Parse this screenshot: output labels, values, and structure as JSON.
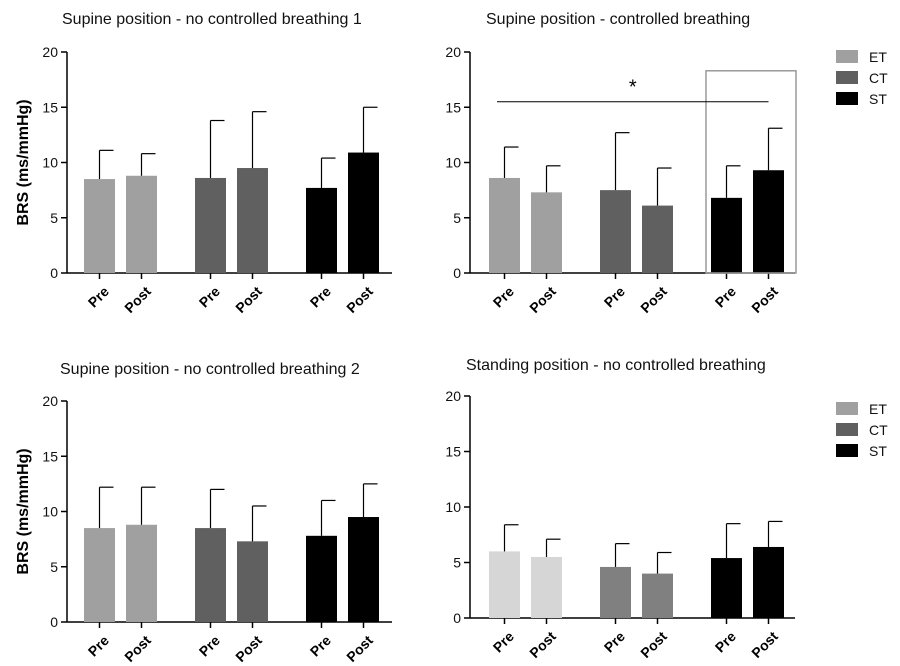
{
  "chart_data": [
    {
      "type": "bar",
      "title": "Supine position - no controlled breathing 1",
      "ylabel": "BRS (ms/mmHg)",
      "ylim": [
        0,
        20
      ],
      "yticks": [
        0,
        5,
        10,
        15,
        20
      ],
      "categories": [
        "Pre",
        "Post",
        "Pre",
        "Post",
        "Pre",
        "Post"
      ],
      "groups": [
        "ET",
        "ET",
        "CT",
        "CT",
        "ST",
        "ST"
      ],
      "values": [
        8.5,
        8.8,
        8.6,
        9.5,
        7.7,
        10.9
      ],
      "errors": [
        2.6,
        2.0,
        5.2,
        5.1,
        2.7,
        4.1
      ],
      "colors": [
        "#a0a0a0",
        "#a0a0a0",
        "#606060",
        "#606060",
        "#000000",
        "#000000"
      ],
      "legend": null
    },
    {
      "type": "bar",
      "title": "Supine position - controlled breathing",
      "ylabel": "",
      "ylim": [
        0,
        20
      ],
      "yticks": [
        0,
        5,
        10,
        15,
        20
      ],
      "categories": [
        "Pre",
        "Post",
        "Pre",
        "Post",
        "Pre",
        "Post"
      ],
      "groups": [
        "ET",
        "ET",
        "CT",
        "CT",
        "ST",
        "ST"
      ],
      "values": [
        8.6,
        7.3,
        7.5,
        6.1,
        6.8,
        9.3
      ],
      "errors": [
        2.8,
        2.4,
        5.2,
        3.4,
        2.9,
        3.8
      ],
      "colors": [
        "#a0a0a0",
        "#a0a0a0",
        "#606060",
        "#606060",
        "#000000",
        "#000000"
      ],
      "legend": {
        "placement": "top-right",
        "items": [
          {
            "label": "ET",
            "color": "#a0a0a0"
          },
          {
            "label": "CT",
            "color": "#606060"
          },
          {
            "label": "ST",
            "color": "#000000"
          }
        ]
      },
      "significance": {
        "text": "*",
        "from_index": 0,
        "to_index": 5,
        "y": 15.5
      },
      "highlight_indices": [
        4,
        5
      ]
    },
    {
      "type": "bar",
      "title": "Supine position - no controlled breathing 2",
      "ylabel": "BRS (ms/mmHg)",
      "ylim": [
        0,
        20
      ],
      "yticks": [
        0,
        5,
        10,
        15,
        20
      ],
      "categories": [
        "Pre",
        "Post",
        "Pre",
        "Post",
        "Pre",
        "Post"
      ],
      "groups": [
        "ET",
        "ET",
        "CT",
        "CT",
        "ST",
        "ST"
      ],
      "values": [
        8.5,
        8.8,
        8.5,
        7.3,
        7.8,
        9.5
      ],
      "errors": [
        3.7,
        3.4,
        3.5,
        3.2,
        3.2,
        3.0
      ],
      "colors": [
        "#a0a0a0",
        "#a0a0a0",
        "#606060",
        "#606060",
        "#000000",
        "#000000"
      ],
      "legend": null
    },
    {
      "type": "bar",
      "title": "Standing position - no controlled breathing",
      "ylabel": "",
      "ylim": [
        0,
        20
      ],
      "yticks": [
        0,
        5,
        10,
        15,
        20
      ],
      "categories": [
        "Pre",
        "Post",
        "Pre",
        "Post",
        "Pre",
        "Post"
      ],
      "groups": [
        "ET",
        "ET",
        "CT",
        "CT",
        "ST",
        "ST"
      ],
      "values": [
        6.0,
        5.5,
        4.6,
        4.0,
        5.4,
        6.4
      ],
      "errors": [
        2.4,
        1.6,
        2.1,
        1.9,
        3.1,
        2.3
      ],
      "colors": [
        "#d6d6d6",
        "#d6d6d6",
        "#808080",
        "#808080",
        "#000000",
        "#000000"
      ],
      "legend": {
        "placement": "top-right",
        "items": [
          {
            "label": "ET",
            "color": "#a0a0a0"
          },
          {
            "label": "CT",
            "color": "#606060"
          },
          {
            "label": "ST",
            "color": "#000000"
          }
        ]
      }
    }
  ]
}
